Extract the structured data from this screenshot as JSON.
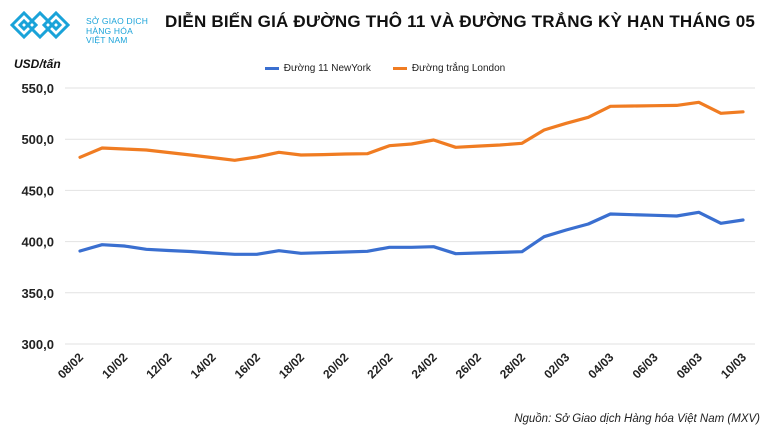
{
  "header": {
    "logo_text": [
      "SỞ GIAO DỊCH",
      "HÀNG HÓA",
      "VIỆT NAM"
    ],
    "title": "DIỄN BIẾN GIÁ ĐƯỜNG THÔ 11 VÀ ĐƯỜNG TRẮNG KỲ HẠN THÁNG 05"
  },
  "source": "Nguồn: Sở Giao dịch Hàng hóa Việt Nam (MXV)",
  "chart_data": {
    "type": "line",
    "title": "DIỄN BIẾN GIÁ ĐƯỜNG THÔ 11 VÀ ĐƯỜNG TRẮNG KỲ HẠN THÁNG 05",
    "ylabel": "USD/tấn",
    "xlabel": "",
    "ylim": [
      300,
      550
    ],
    "yticks": [
      "300,0",
      "350,0",
      "400,0",
      "450,0",
      "500,0",
      "550,0"
    ],
    "grid": true,
    "legend": "top",
    "x": [
      "08/02",
      "09/02",
      "10/02",
      "11/02",
      "12/02",
      "13/02",
      "14/02",
      "15/02",
      "16/02",
      "17/02",
      "18/02",
      "19/02",
      "20/02",
      "21/02",
      "22/02",
      "23/02",
      "24/02",
      "25/02",
      "26/02",
      "27/02",
      "28/02",
      "01/03",
      "02/03",
      "03/03",
      "04/03",
      "05/03",
      "06/03",
      "07/03",
      "08/03",
      "09/03",
      "10/03"
    ],
    "xtick_labels": [
      "08/02",
      "10/02",
      "12/02",
      "14/02",
      "16/02",
      "18/02",
      "20/02",
      "22/02",
      "24/02",
      "26/02",
      "28/02",
      "02/03",
      "04/03",
      "06/03",
      "08/03",
      "10/03"
    ],
    "series": [
      {
        "name": "Đường 11 NewYork",
        "color": "#3a6fd0",
        "values": [
          390.8,
          397.0,
          395.7,
          392.5,
          391.3,
          390.3,
          388.9,
          387.6,
          387.6,
          391.1,
          388.6,
          389.2,
          389.8,
          390.5,
          394.4,
          394.4,
          395.0,
          388.2,
          388.9,
          389.5,
          390.1,
          404.8,
          411.3,
          417.2,
          427.0,
          426.3,
          425.7,
          425.0,
          428.6,
          417.9,
          421.1
        ]
      },
      {
        "name": "Đường trắng London",
        "color": "#f07c22",
        "values": [
          482.3,
          491.4,
          490.4,
          489.5,
          487.0,
          484.6,
          482.0,
          479.4,
          482.6,
          487.2,
          484.6,
          485.0,
          485.5,
          485.8,
          493.7,
          495.3,
          499.2,
          492.1,
          493.3,
          494.3,
          496.0,
          509.0,
          515.5,
          521.4,
          532.1,
          532.4,
          532.7,
          533.0,
          536.0,
          525.3,
          526.8
        ]
      }
    ]
  }
}
